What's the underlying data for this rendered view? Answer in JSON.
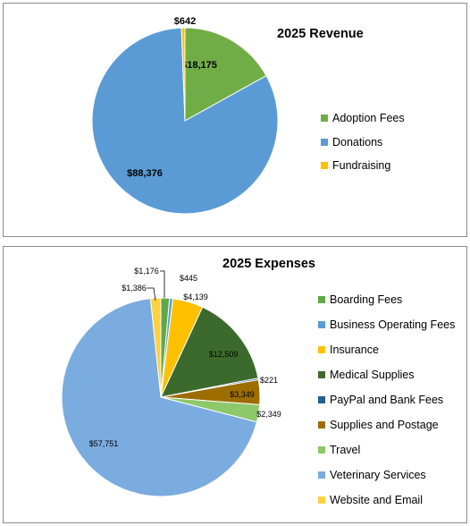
{
  "chart_data": [
    {
      "type": "pie",
      "title": "2025 Revenue",
      "legend_position": "right",
      "categories": [
        "Adoption Fees",
        "Donations",
        "Fundraising"
      ],
      "values": [
        18175,
        88376,
        642
      ],
      "data_labels": [
        "$18,175",
        "$88,376",
        "$642"
      ],
      "colors": [
        "#70ad47",
        "#5b9bd5",
        "#ffc000"
      ]
    },
    {
      "type": "pie",
      "title": "2025 Expenses",
      "legend_position": "right",
      "categories": [
        "Boarding Fees",
        "Business Operating Fees",
        "Insurance",
        "Medical Supplies",
        "PayPal and Bank Fees",
        "Supplies and Postage",
        "Travel",
        "Veterinary Services",
        "Website and Email"
      ],
      "values": [
        1176,
        445,
        4139,
        12509,
        221,
        3349,
        2349,
        57751,
        1386
      ],
      "data_labels": [
        "$1,176",
        "$445",
        "$4,139",
        "$12,509",
        "$221",
        "$3,349",
        "$2,349",
        "$57,751",
        "$1,386"
      ],
      "colors": [
        "#5fa84a",
        "#5b9bd5",
        "#ffc000",
        "#3c6a2c",
        "#255e91",
        "#9e6d00",
        "#8dc86b",
        "#7aacdf",
        "#ffd040"
      ]
    }
  ]
}
